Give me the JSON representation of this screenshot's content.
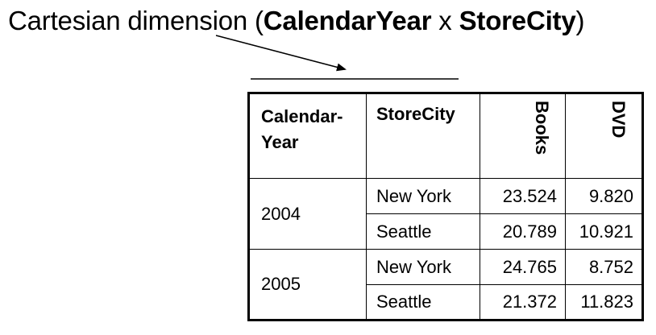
{
  "title": {
    "prefix": "Cartesian dimension (",
    "dim1": "CalendarYear",
    "separator": " x ",
    "dim2": "StoreCity",
    "suffix": ")"
  },
  "table": {
    "headers": {
      "year": "Calendar-Year",
      "city": "StoreCity",
      "books": "Books",
      "dvd": "DVD"
    },
    "groups": [
      {
        "year": "2004",
        "rows": [
          {
            "city": "New York",
            "books": "23.524",
            "dvd": "9.820"
          },
          {
            "city": "Seattle",
            "books": "20.789",
            "dvd": "10.921"
          }
        ]
      },
      {
        "year": "2005",
        "rows": [
          {
            "city": "New York",
            "books": "24.765",
            "dvd": "8.752"
          },
          {
            "city": "Seattle",
            "books": "21.372",
            "dvd": "11.823"
          }
        ]
      }
    ]
  }
}
